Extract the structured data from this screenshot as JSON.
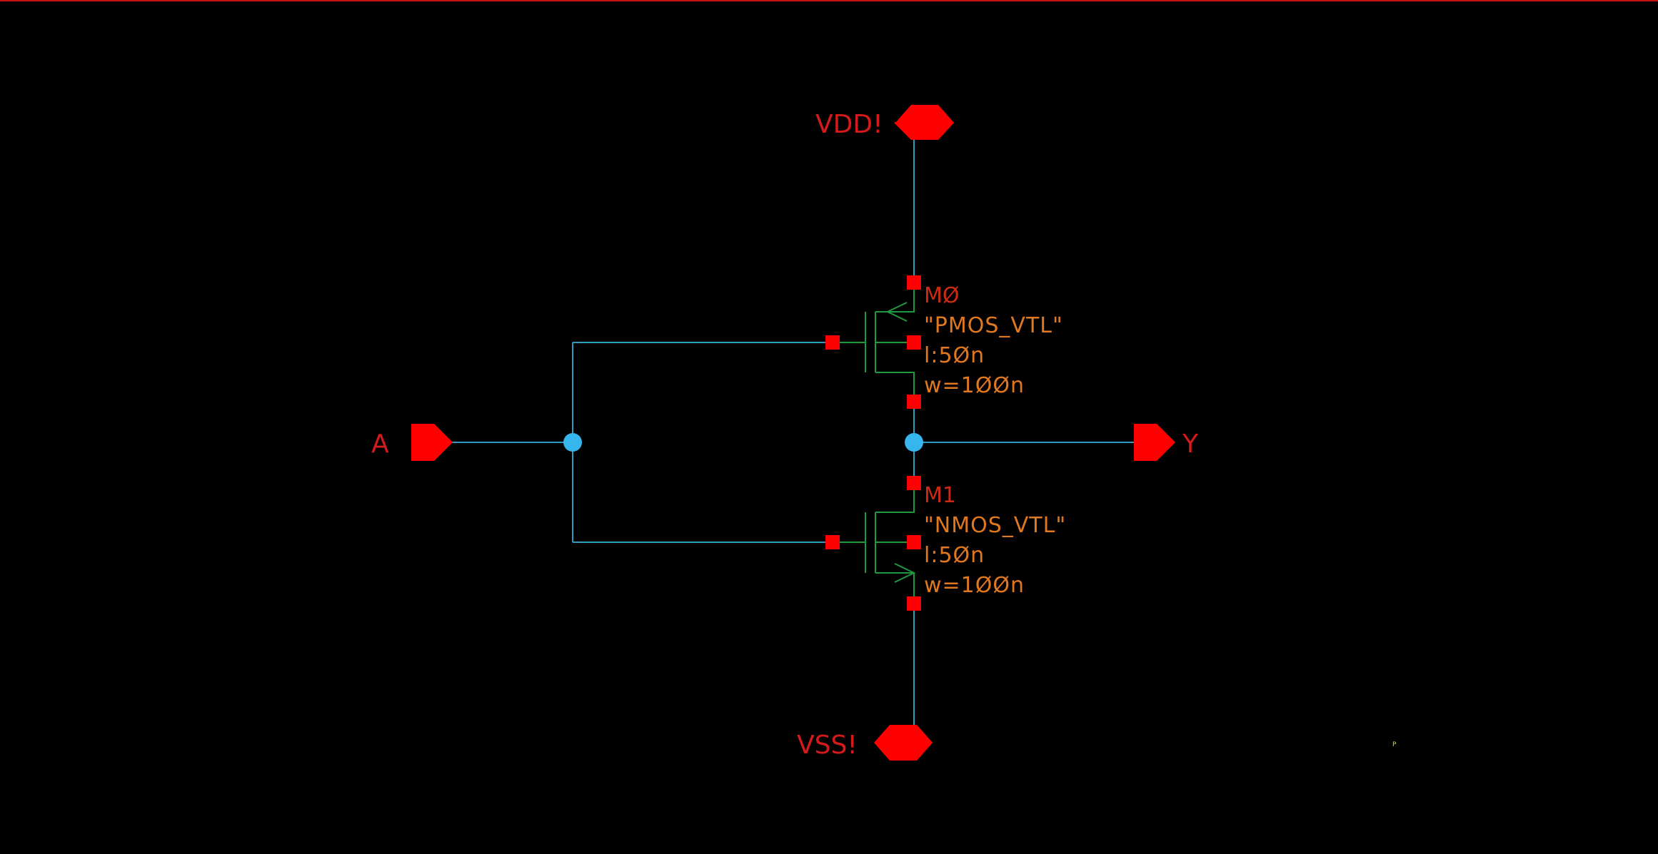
{
  "schematic": {
    "colors": {
      "background": "#000000",
      "wire": "#2d9bbf",
      "device": "#1f9a3e",
      "pin": "#ff0000",
      "junction": "#37b6ee",
      "net_label": "#d41a1a",
      "instance_name": "#cc2a15",
      "parameter": "#e07820",
      "top_border": "#c41414"
    },
    "ports": {
      "vdd": "VDD!",
      "vss": "VSS!",
      "input": "A",
      "output": "Y"
    },
    "devices": [
      {
        "instance": "MØ",
        "model": "\"PMOS_VTL\"",
        "length": "l:5Øn",
        "width": "w=1ØØn",
        "type": "pmos"
      },
      {
        "instance": "M1",
        "model": "\"NMOS_VTL\"",
        "length": "l:5Øn",
        "width": "w=1ØØn",
        "type": "nmos"
      }
    ],
    "marker": "P"
  }
}
